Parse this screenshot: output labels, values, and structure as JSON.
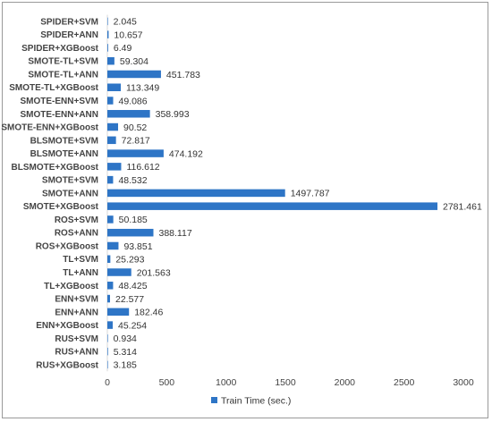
{
  "chart_data": {
    "type": "bar",
    "orientation": "horizontal",
    "categories": [
      "SPIDER+SVM",
      "SPIDER+ANN",
      "SPIDER+XGBoost",
      "SMOTE-TL+SVM",
      "SMOTE-TL+ANN",
      "SMOTE-TL+XGBoost",
      "SMOTE-ENN+SVM",
      "SMOTE-ENN+ANN",
      "SMOTE-ENN+XGBoost",
      "BLSMOTE+SVM",
      "BLSMOTE+ANN",
      "BLSMOTE+XGBoost",
      "SMOTE+SVM",
      "SMOTE+ANN",
      "SMOTE+XGBoost",
      "ROS+SVM",
      "ROS+ANN",
      "ROS+XGBoost",
      "TL+SVM",
      "TL+ANN",
      "TL+XGBoost",
      "ENN+SVM",
      "ENN+ANN",
      "ENN+XGBoost",
      "RUS+SVM",
      "RUS+ANN",
      "RUS+XGBoost"
    ],
    "series": [
      {
        "name": "Train Time (sec.)",
        "color": "#2e75c6",
        "values": [
          2.045,
          10.657,
          6.49,
          59.304,
          451.783,
          113.349,
          49.086,
          358.993,
          90.52,
          72.817,
          474.192,
          116.612,
          48.532,
          1497.787,
          2781.461,
          50.185,
          388.117,
          93.851,
          25.293,
          201.563,
          48.425,
          22.577,
          182.46,
          45.254,
          0.934,
          5.314,
          3.185
        ],
        "labels": [
          "2.045",
          "10.657",
          "6.49",
          "59.304",
          "451.783",
          "113.349",
          "49.086",
          "358.993",
          "90.52",
          "72.817",
          "474.192",
          "116.612",
          "48.532",
          "1497.787",
          "2781.461",
          "50.185",
          "388.117",
          "93.851",
          "25.293",
          "201.563",
          "48.425",
          "22.577",
          "182.46",
          "45.254",
          "0.934",
          "5.314",
          "3.185"
        ]
      }
    ],
    "xticks": [
      "0",
      "500",
      "1000",
      "1500",
      "2000",
      "2500",
      "3000"
    ],
    "xlim": [
      0,
      3000
    ],
    "grid": false,
    "legend": "bottom"
  }
}
